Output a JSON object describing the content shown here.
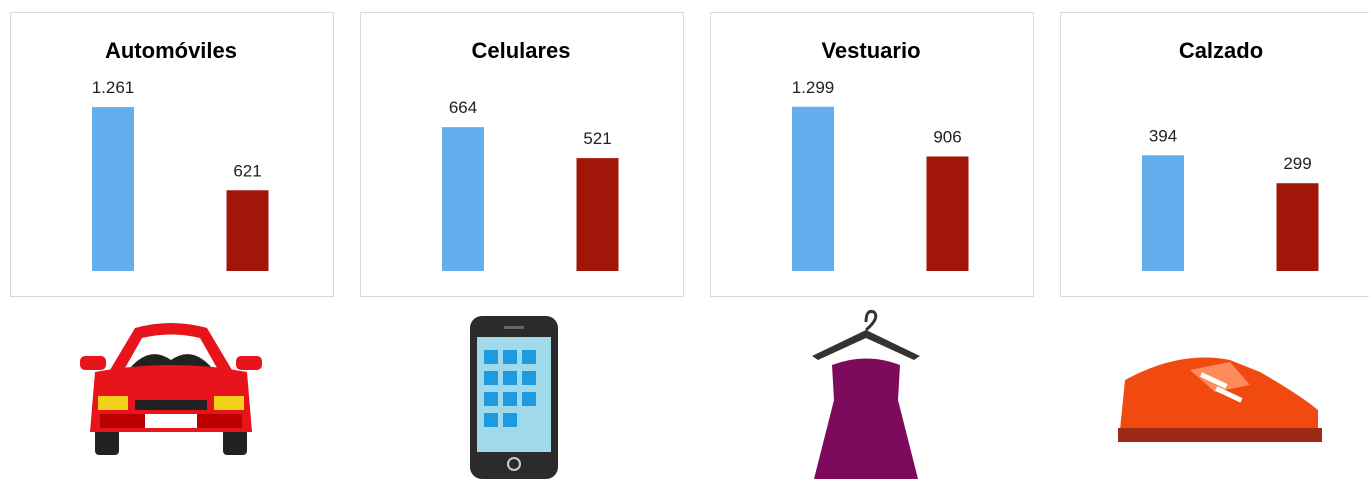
{
  "chart_data": [
    {
      "type": "bar",
      "title": "Automóviles",
      "categories": [
        null,
        null
      ],
      "values": [
        1261,
        621
      ],
      "value_labels": [
        "1.261",
        "621"
      ],
      "colors": [
        "#65aeee",
        "#a01608"
      ],
      "ylim": [
        0,
        1400
      ]
    },
    {
      "type": "bar",
      "title": "Celulares",
      "categories": [
        null,
        null
      ],
      "values": [
        664,
        521
      ],
      "colors": [
        "#65aeee",
        "#a01608"
      ],
      "ylim": [
        0,
        840
      ]
    },
    {
      "type": "bar",
      "title": "Vestuario",
      "categories": [
        null,
        null
      ],
      "values": [
        1299,
        906
      ],
      "value_labels": [
        "1.299",
        "906"
      ],
      "colors": [
        "#65aeee",
        "#a01608"
      ],
      "ylim": [
        0,
        1440
      ]
    },
    {
      "type": "bar",
      "title": "Calzado",
      "categories": [
        null,
        null
      ],
      "values": [
        394,
        299
      ],
      "colors": [
        "#65aeee",
        "#a01608"
      ],
      "ylim": [
        0,
        620
      ]
    }
  ]
}
